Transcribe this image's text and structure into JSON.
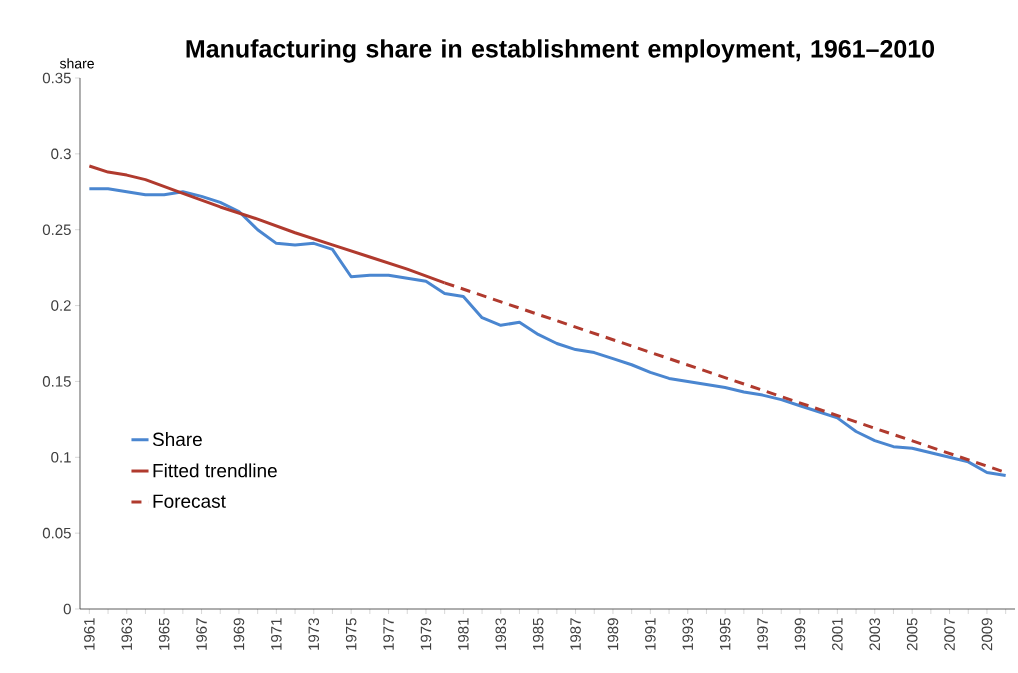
{
  "chart_data": {
    "type": "line",
    "title": "Manufacturing share in establishment employment, 1961–2010",
    "ylabel": "share",
    "xlim": [
      1960.5,
      2010.5
    ],
    "ylim": [
      0,
      0.35
    ],
    "yticks": [
      0,
      0.05,
      0.1,
      0.15,
      0.2,
      0.25,
      0.3,
      0.35
    ],
    "xticks": [
      1961,
      {
        "value": 1962,
        "label": null
      },
      1963,
      {
        "value": 1964,
        "label": null
      },
      1965,
      {
        "value": 1966,
        "label": null
      },
      1967,
      {
        "value": 1968,
        "label": null
      },
      1969,
      {
        "value": 1970,
        "label": null
      },
      1971,
      {
        "value": 1972,
        "label": null
      },
      1973,
      {
        "value": 1974,
        "label": null
      },
      1975,
      {
        "value": 1976,
        "label": null
      },
      1977,
      {
        "value": 1978,
        "label": null
      },
      1979,
      {
        "value": 1980,
        "label": null
      },
      1981,
      {
        "value": 1982,
        "label": null
      },
      1983,
      {
        "value": 1984,
        "label": null
      },
      1985,
      {
        "value": 1986,
        "label": null
      },
      1987,
      {
        "value": 1988,
        "label": null
      },
      1989,
      {
        "value": 1990,
        "label": null
      },
      1991,
      {
        "value": 1992,
        "label": null
      },
      1993,
      {
        "value": 1994,
        "label": null
      },
      1995,
      {
        "value": 1996,
        "label": null
      },
      1997,
      {
        "value": 1998,
        "label": null
      },
      1999,
      {
        "value": 2000,
        "label": null
      },
      2001,
      {
        "value": 2002,
        "label": null
      },
      2003,
      {
        "value": 2004,
        "label": null
      },
      2005,
      {
        "value": 2006,
        "label": null
      },
      2007,
      {
        "value": 2008,
        "label": null
      },
      2009,
      {
        "value": 2010,
        "label": null
      }
    ],
    "grid": false,
    "legend": "bottom left",
    "marker": "none",
    "series": [
      {
        "name": "Share",
        "color": "#4a86d0",
        "line_style": "solid",
        "x": [
          1961,
          1962,
          1963,
          1964,
          1965,
          1966,
          1967,
          1968,
          1969,
          1970,
          1971,
          1972,
          1973,
          1974,
          1975,
          1976,
          1977,
          1978,
          1979,
          1980,
          1981,
          1982,
          1983,
          1984,
          1985,
          1986,
          1987,
          1988,
          1989,
          1990,
          1991,
          1992,
          1993,
          1994,
          1995,
          1996,
          1997,
          1998,
          1999,
          2000,
          2001,
          2002,
          2003,
          2004,
          2005,
          2006,
          2007,
          2008,
          2009,
          2010
        ],
        "values": [
          0.277,
          0.277,
          0.275,
          0.273,
          0.273,
          0.275,
          0.272,
          0.268,
          0.262,
          0.25,
          0.241,
          0.24,
          0.241,
          0.237,
          0.219,
          0.22,
          0.22,
          0.218,
          0.216,
          0.208,
          0.206,
          0.192,
          0.187,
          0.189,
          0.181,
          0.175,
          0.171,
          0.169,
          0.165,
          0.161,
          0.156,
          0.152,
          0.15,
          0.148,
          0.146,
          0.143,
          0.141,
          0.138,
          0.134,
          0.13,
          0.126,
          0.117,
          0.111,
          0.107,
          0.106,
          0.103,
          0.1,
          0.097,
          0.09,
          0.088
        ]
      },
      {
        "name": "Fitted trendline",
        "color": "#b03a2e",
        "line_style": "solid",
        "x": [
          1961,
          1962,
          1963,
          1964,
          1966,
          1968,
          1970,
          1972,
          1974,
          1976,
          1978,
          1980
        ],
        "values": [
          0.292,
          0.288,
          0.286,
          0.283,
          0.274,
          0.265,
          0.257,
          0.248,
          0.24,
          0.232,
          0.224,
          0.215
        ]
      },
      {
        "name": "Forecast",
        "color": "#b03a2e",
        "line_style": "dashed",
        "x": [
          1980,
          2010
        ],
        "values": [
          0.215,
          0.09
        ]
      }
    ]
  }
}
